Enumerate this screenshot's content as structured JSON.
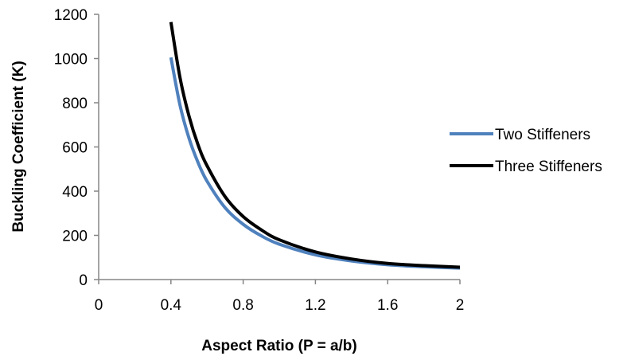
{
  "chart_data": {
    "type": "line",
    "title": "",
    "xlabel": "Aspect Ratio (P = a/b)",
    "ylabel": "Buckling Coefficient (K)",
    "xlim": [
      0,
      2
    ],
    "ylim": [
      0,
      1200
    ],
    "xticks": [
      "0",
      "0.4",
      "0.8",
      "1.2",
      "1.6",
      "2"
    ],
    "yticks": [
      "0",
      "200",
      "400",
      "600",
      "800",
      "1000",
      "1200"
    ],
    "grid": false,
    "legend_position": "right",
    "series": [
      {
        "name": "Two Stiffeners",
        "color": "#4f81bd",
        "x": [
          0.4,
          0.45,
          0.5,
          0.55,
          0.6,
          0.7,
          0.8,
          0.9,
          1.0,
          1.2,
          1.4,
          1.6,
          1.8,
          2.0
        ],
        "y": [
          1005,
          790,
          640,
          530,
          445,
          325,
          250,
          198,
          160,
          112,
          84,
          67,
          58,
          52
        ]
      },
      {
        "name": "Three Stiffeners",
        "color": "#000000",
        "x": [
          0.4,
          0.45,
          0.5,
          0.55,
          0.6,
          0.7,
          0.8,
          0.9,
          1.0,
          1.2,
          1.4,
          1.6,
          1.8,
          2.0
        ],
        "y": [
          1165,
          915,
          740,
          610,
          515,
          375,
          285,
          225,
          180,
          125,
          93,
          73,
          63,
          56
        ]
      }
    ]
  }
}
